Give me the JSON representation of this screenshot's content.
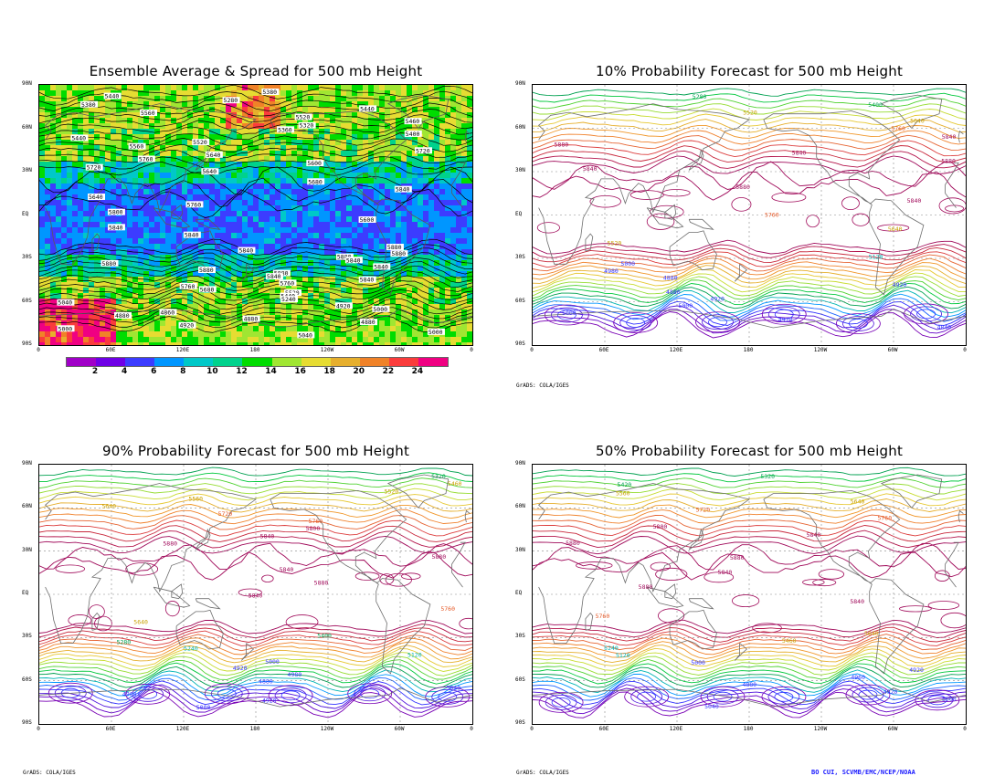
{
  "panels": [
    {
      "id": "ensemble",
      "title": "Ensemble Average & Spread for 500 mb Height"
    },
    {
      "id": "p10",
      "title": "10% Probability Forecast for 500 mb Height"
    },
    {
      "id": "p90",
      "title": "90% Probability Forecast for 500 mb Height"
    },
    {
      "id": "p50",
      "title": "50% Probability Forecast for 500 mb Height"
    }
  ],
  "lat_labels": [
    "90N",
    "60N",
    "30N",
    "EQ",
    "30S",
    "60S",
    "90S"
  ],
  "lon_labels": [
    "0",
    "60E",
    "120E",
    "180",
    "120W",
    "60W",
    "0"
  ],
  "colorbar": {
    "labels": [
      "2",
      "4",
      "6",
      "8",
      "10",
      "12",
      "14",
      "16",
      "18",
      "20",
      "22",
      "24"
    ],
    "colors": [
      "#a000c8",
      "#6e00e6",
      "#3c3cff",
      "#0096ff",
      "#00c8c8",
      "#00d28c",
      "#00dc00",
      "#a0e632",
      "#e6dc32",
      "#e6af2d",
      "#f08228",
      "#fa3c3c",
      "#f00082"
    ]
  },
  "contour_labels": {
    "ensemble": [
      "5380",
      "5440",
      "5280",
      "5380",
      "5440",
      "5560",
      "5520",
      "5460",
      "5320",
      "5360",
      "5400",
      "5440",
      "5520",
      "5560",
      "5720",
      "5640",
      "5760",
      "5600",
      "5720",
      "5640",
      "5680",
      "5840",
      "5640",
      "5760",
      "5800",
      "5600",
      "5840",
      "5840",
      "5880",
      "5840",
      "5880",
      "5880",
      "5840",
      "5880",
      "5840",
      "5880",
      "5880",
      "5840",
      "5840",
      "5760",
      "5760",
      "5680",
      "5520",
      "5440",
      "5240",
      "5040",
      "4920",
      "5000",
      "4860",
      "4880",
      "4880",
      "4880",
      "4920",
      "5000",
      "5000",
      "5040"
    ],
    "p10": [
      "5280",
      "5400",
      "5520",
      "5640",
      "5760",
      "5840",
      "5880",
      "5840",
      "5880",
      "5840",
      "5880",
      "5840",
      "5760",
      "5640",
      "5520",
      "5120",
      "5000",
      "4980",
      "4880",
      "4920",
      "4880",
      "4920",
      "5000",
      "5000",
      "4920",
      "4840"
    ],
    "p90": [
      "5320",
      "5460",
      "5520",
      "5560",
      "5640",
      "5720",
      "5760",
      "5800",
      "5840",
      "5880",
      "5880",
      "5840",
      "5880",
      "5840",
      "5760",
      "5640",
      "5400",
      "5280",
      "5240",
      "5120",
      "5000",
      "4920",
      "4980",
      "4880",
      "5040",
      "4960",
      "4920",
      "5000"
    ],
    "p50": [
      "5320",
      "5420",
      "5560",
      "5640",
      "5720",
      "5760",
      "5800",
      "5840",
      "5880",
      "5880",
      "5840",
      "5880",
      "5840",
      "5760",
      "5640",
      "5460",
      "5240",
      "5120",
      "5000",
      "4920",
      "4960",
      "4880",
      "4920",
      "5000",
      "5040"
    ]
  },
  "footers": [
    "GrADS: COLA/IGES",
    "GrADS: COLA/IGES",
    "GrADS: COLA/IGES"
  ],
  "credit": "BO CUI, SCVMB/EMC/NCEP/NOAA"
}
